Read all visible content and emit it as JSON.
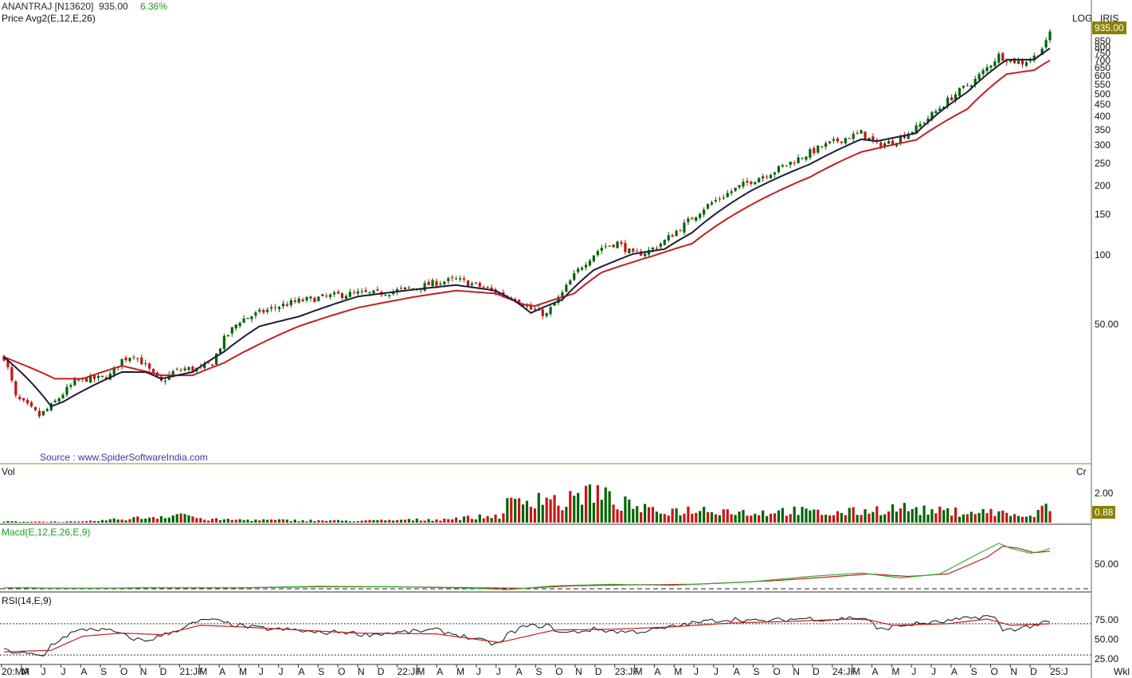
{
  "header": {
    "symbol": "ANANTRAJ [N13620]",
    "price": "935.00",
    "change": "6.36%",
    "indicator": "Price  Avg2(E,12,E,26)",
    "scale": "LOG",
    "brand": "IRIS"
  },
  "source": "Source : www.SpiderSoftwareIndia.com",
  "panels": {
    "vol_label": "Vol",
    "vol_unit": "Cr",
    "macd_label": "Macd(E,12,E,26,E,9)",
    "rsi_label": "RSI(14,E,9)",
    "period": "Wkl"
  },
  "colors": {
    "up": "#006400",
    "down": "#c81414",
    "ema_fast": "#1c1c3c",
    "ema_slow": "#c02020",
    "macd": "#2fb02f",
    "signal": "#c02020",
    "axis": "#8a8a30",
    "tag": "#8a8000"
  },
  "chart_data": {
    "type": "candlestick",
    "scale": "log",
    "last_price_tag": "935.00",
    "volume_tag": "0.88",
    "y_ticks": [
      "850",
      "800",
      "750",
      "700",
      "650",
      "600",
      "550",
      "500",
      "450",
      "400",
      "350",
      "300",
      "250",
      "200",
      "150",
      "100",
      "50.00"
    ],
    "vol_ticks": [
      "2.00"
    ],
    "macd_ticks": [
      "50.00"
    ],
    "rsi_ticks": [
      "75.00",
      "50.00",
      "25.00"
    ],
    "x_ticks": [
      "20:MA",
      "M",
      "J",
      "J",
      "A",
      "S",
      "O",
      "N",
      "D",
      "21:JF",
      "M",
      "A",
      "M",
      "J",
      "J",
      "A",
      "S",
      "O",
      "N",
      "D",
      "22:JF",
      "M",
      "A",
      "M",
      "J",
      "J",
      "A",
      "S",
      "O",
      "N",
      "D",
      "23:JF",
      "M",
      "A",
      "M",
      "J",
      "J",
      "A",
      "S",
      "O",
      "N",
      "D",
      "24:JF",
      "M",
      "A",
      "M",
      "J",
      "J",
      "A",
      "S",
      "O",
      "N",
      "D",
      "25:J"
    ],
    "close_anchors": [
      [
        0,
        36
      ],
      [
        3,
        24
      ],
      [
        6,
        22
      ],
      [
        9,
        20
      ],
      [
        12,
        22
      ],
      [
        15,
        25
      ],
      [
        18,
        28
      ],
      [
        21,
        29
      ],
      [
        24,
        29
      ],
      [
        27,
        30
      ],
      [
        30,
        35
      ],
      [
        33,
        37
      ],
      [
        36,
        33
      ],
      [
        38,
        30
      ],
      [
        40,
        28
      ],
      [
        43,
        31
      ],
      [
        46,
        32
      ],
      [
        50,
        32
      ],
      [
        53,
        34
      ],
      [
        56,
        43
      ],
      [
        60,
        52
      ],
      [
        65,
        56
      ],
      [
        70,
        60
      ],
      [
        75,
        63
      ],
      [
        80,
        65
      ],
      [
        85,
        67
      ],
      [
        90,
        68
      ],
      [
        95,
        68
      ],
      [
        100,
        70
      ],
      [
        105,
        72
      ],
      [
        110,
        76
      ],
      [
        115,
        78
      ],
      [
        120,
        74
      ],
      [
        125,
        69
      ],
      [
        130,
        65
      ],
      [
        134,
        58
      ],
      [
        138,
        55
      ],
      [
        142,
        68
      ],
      [
        147,
        90
      ],
      [
        152,
        108
      ],
      [
        156,
        113
      ],
      [
        160,
        100
      ],
      [
        164,
        104
      ],
      [
        168,
        115
      ],
      [
        173,
        135
      ],
      [
        178,
        160
      ],
      [
        184,
        185
      ],
      [
        190,
        210
      ],
      [
        196,
        232
      ],
      [
        202,
        262
      ],
      [
        208,
        295
      ],
      [
        214,
        322
      ],
      [
        218,
        338
      ],
      [
        222,
        300
      ],
      [
        226,
        310
      ],
      [
        232,
        355
      ],
      [
        237,
        420
      ],
      [
        242,
        500
      ],
      [
        247,
        575
      ],
      [
        250,
        650
      ],
      [
        253,
        735
      ],
      [
        256,
        700
      ],
      [
        259,
        685
      ],
      [
        262,
        725
      ],
      [
        265,
        830
      ],
      [
        266,
        935
      ]
    ],
    "ema_fast_anchors": [
      [
        0,
        36
      ],
      [
        12,
        22
      ],
      [
        15,
        23
      ],
      [
        30,
        31
      ],
      [
        36,
        31
      ],
      [
        40,
        29
      ],
      [
        48,
        31
      ],
      [
        56,
        38
      ],
      [
        65,
        49
      ],
      [
        75,
        54
      ],
      [
        90,
        66
      ],
      [
        105,
        71
      ],
      [
        115,
        74
      ],
      [
        125,
        70
      ],
      [
        130,
        63
      ],
      [
        134,
        56
      ],
      [
        142,
        64
      ],
      [
        150,
        86
      ],
      [
        160,
        101
      ],
      [
        168,
        106
      ],
      [
        175,
        125
      ],
      [
        190,
        190
      ],
      [
        205,
        248
      ],
      [
        218,
        318
      ],
      [
        222,
        312
      ],
      [
        232,
        338
      ],
      [
        245,
        510
      ],
      [
        255,
        705
      ],
      [
        262,
        705
      ],
      [
        266,
        790
      ]
    ],
    "ema_slow_anchors": [
      [
        0,
        36
      ],
      [
        13,
        29
      ],
      [
        20,
        29
      ],
      [
        30,
        33
      ],
      [
        40,
        30
      ],
      [
        48,
        30
      ],
      [
        56,
        34
      ],
      [
        65,
        41
      ],
      [
        75,
        49
      ],
      [
        90,
        59
      ],
      [
        105,
        66
      ],
      [
        115,
        70
      ],
      [
        125,
        68
      ],
      [
        132,
        61
      ],
      [
        135,
        60
      ],
      [
        145,
        68
      ],
      [
        152,
        84
      ],
      [
        165,
        99
      ],
      [
        175,
        112
      ],
      [
        190,
        165
      ],
      [
        205,
        218
      ],
      [
        218,
        280
      ],
      [
        232,
        316
      ],
      [
        245,
        430
      ],
      [
        255,
        610
      ],
      [
        262,
        635
      ],
      [
        266,
        700
      ]
    ],
    "volume_anchors": [
      [
        0,
        0.08
      ],
      [
        20,
        0.06
      ],
      [
        38,
        0.38
      ],
      [
        46,
        0.62
      ],
      [
        50,
        0.22
      ],
      [
        65,
        0.18
      ],
      [
        90,
        0.12
      ],
      [
        110,
        0.22
      ],
      [
        126,
        0.46
      ],
      [
        128,
        1.2
      ],
      [
        133,
        1.5
      ],
      [
        137,
        1.9
      ],
      [
        142,
        1.2
      ],
      [
        147,
        1.95
      ],
      [
        150,
        2.1
      ],
      [
        155,
        1.45
      ],
      [
        165,
        0.75
      ],
      [
        180,
        0.92
      ],
      [
        190,
        0.65
      ],
      [
        200,
        0.82
      ],
      [
        210,
        0.6
      ],
      [
        220,
        0.82
      ],
      [
        228,
        1.02
      ],
      [
        235,
        0.78
      ],
      [
        245,
        0.72
      ],
      [
        252,
        0.72
      ],
      [
        258,
        0.5
      ],
      [
        262,
        0.3
      ],
      [
        264,
        1.28
      ],
      [
        266,
        0.88
      ]
    ],
    "macd_anchors": [
      [
        0,
        2
      ],
      [
        20,
        1
      ],
      [
        40,
        2
      ],
      [
        60,
        2
      ],
      [
        80,
        5
      ],
      [
        100,
        4
      ],
      [
        120,
        1
      ],
      [
        128,
        -2
      ],
      [
        140,
        6
      ],
      [
        155,
        9
      ],
      [
        170,
        7
      ],
      [
        190,
        14
      ],
      [
        205,
        25
      ],
      [
        218,
        32
      ],
      [
        228,
        22
      ],
      [
        238,
        30
      ],
      [
        248,
        72
      ],
      [
        253,
        92
      ],
      [
        256,
        82
      ],
      [
        261,
        72
      ],
      [
        264,
        76
      ],
      [
        266,
        82
      ]
    ],
    "signal_anchors": [
      [
        0,
        2
      ],
      [
        20,
        1
      ],
      [
        40,
        2
      ],
      [
        60,
        2
      ],
      [
        80,
        4
      ],
      [
        100,
        4
      ],
      [
        120,
        2
      ],
      [
        132,
        1
      ],
      [
        145,
        6
      ],
      [
        160,
        8
      ],
      [
        175,
        9
      ],
      [
        195,
        16
      ],
      [
        210,
        24
      ],
      [
        220,
        30
      ],
      [
        230,
        25
      ],
      [
        240,
        30
      ],
      [
        250,
        64
      ],
      [
        254,
        86
      ],
      [
        258,
        82
      ],
      [
        262,
        73
      ],
      [
        266,
        76
      ]
    ],
    "rsi_anchors": [
      [
        0,
        36
      ],
      [
        10,
        28
      ],
      [
        12,
        43
      ],
      [
        17,
        58
      ],
      [
        22,
        64
      ],
      [
        28,
        60
      ],
      [
        32,
        52
      ],
      [
        36,
        48
      ],
      [
        42,
        58
      ],
      [
        48,
        70
      ],
      [
        52,
        76
      ],
      [
        56,
        71
      ],
      [
        62,
        66
      ],
      [
        68,
        63
      ],
      [
        74,
        62
      ],
      [
        80,
        58
      ],
      [
        86,
        60
      ],
      [
        92,
        56
      ],
      [
        98,
        58
      ],
      [
        104,
        60
      ],
      [
        110,
        62
      ],
      [
        116,
        55
      ],
      [
        120,
        50
      ],
      [
        124,
        45
      ],
      [
        126,
        44
      ],
      [
        128,
        56
      ],
      [
        132,
        66
      ],
      [
        138,
        68
      ],
      [
        142,
        58
      ],
      [
        146,
        60
      ],
      [
        150,
        63
      ],
      [
        156,
        60
      ],
      [
        162,
        60
      ],
      [
        168,
        64
      ],
      [
        174,
        70
      ],
      [
        180,
        74
      ],
      [
        186,
        76
      ],
      [
        192,
        73
      ],
      [
        198,
        75
      ],
      [
        204,
        77
      ],
      [
        210,
        75
      ],
      [
        216,
        78
      ],
      [
        220,
        76
      ],
      [
        222,
        62
      ],
      [
        226,
        66
      ],
      [
        232,
        70
      ],
      [
        238,
        72
      ],
      [
        244,
        76
      ],
      [
        250,
        80
      ],
      [
        252,
        77
      ],
      [
        254,
        62
      ],
      [
        258,
        64
      ],
      [
        262,
        68
      ],
      [
        266,
        72
      ]
    ],
    "rsi_signal_anchors": [
      [
        0,
        34
      ],
      [
        12,
        36
      ],
      [
        20,
        54
      ],
      [
        30,
        58
      ],
      [
        40,
        56
      ],
      [
        50,
        68
      ],
      [
        60,
        66
      ],
      [
        75,
        62
      ],
      [
        90,
        58
      ],
      [
        110,
        57
      ],
      [
        126,
        46
      ],
      [
        140,
        62
      ],
      [
        155,
        63
      ],
      [
        170,
        66
      ],
      [
        185,
        71
      ],
      [
        200,
        73
      ],
      [
        215,
        76
      ],
      [
        220,
        75
      ],
      [
        226,
        68
      ],
      [
        240,
        70
      ],
      [
        250,
        76
      ],
      [
        256,
        68
      ],
      [
        266,
        70
      ]
    ]
  }
}
